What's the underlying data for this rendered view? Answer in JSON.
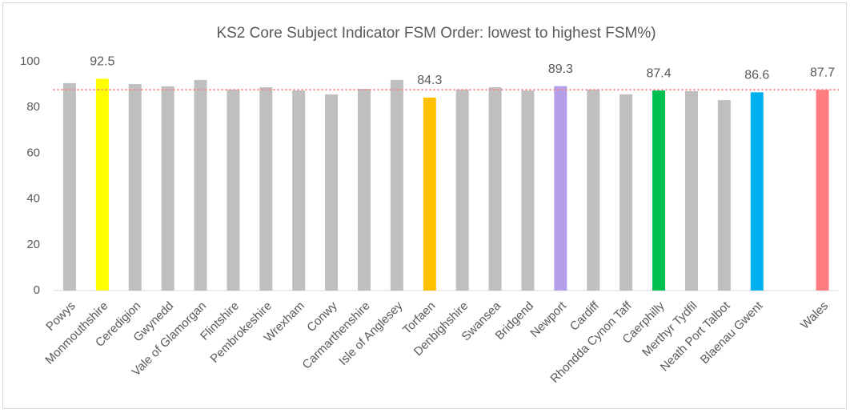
{
  "chart_data": {
    "type": "bar",
    "title": "KS2 Core Subject Indicator FSM Order: lowest to highest FSM%)",
    "categories": [
      "Powys",
      "Monmouthshire",
      "Ceredigion",
      "Gwynedd",
      "Vale of Glamorgan",
      "Flintshire",
      "Pembrokeshire",
      "Wrexham",
      "Conwy",
      "Carmarthenshire",
      "Isle of Anglesey",
      "Torfaen",
      "Denbighshire",
      "Swansea",
      "Bridgend",
      "Newport",
      "Cardiff",
      "Rhondda Cynon Taff",
      "Caerphilly",
      "Merthyr Tydfil",
      "Neath Port Talbot",
      "Blaenau Gwent",
      null,
      "Wales"
    ],
    "values": [
      90.6,
      92.5,
      90.2,
      89.2,
      92.0,
      87.8,
      88.8,
      87.4,
      85.7,
      88.1,
      92.0,
      84.3,
      87.8,
      88.8,
      87.4,
      89.3,
      87.8,
      85.7,
      87.4,
      87.1,
      83.2,
      86.6,
      null,
      87.7
    ],
    "value_labels": [
      null,
      "92.5",
      null,
      null,
      null,
      null,
      null,
      null,
      null,
      null,
      null,
      "84.3",
      null,
      null,
      null,
      "89.3",
      null,
      null,
      "87.4",
      null,
      null,
      "86.6",
      null,
      "87.7"
    ],
    "colors": [
      "#bfbfbf",
      "#ffff00",
      "#bfbfbf",
      "#bfbfbf",
      "#bfbfbf",
      "#bfbfbf",
      "#bfbfbf",
      "#bfbfbf",
      "#bfbfbf",
      "#bfbfbf",
      "#bfbfbf",
      "#ffc000",
      "#bfbfbf",
      "#bfbfbf",
      "#bfbfbf",
      "#b4a0e8",
      "#bfbfbf",
      "#bfbfbf",
      "#00c050",
      "#bfbfbf",
      "#bfbfbf",
      "#00b0f0",
      null,
      "#ff7c80"
    ],
    "reference_line": {
      "value": 87.7,
      "color": "#ff8080"
    },
    "ylim": [
      0,
      100
    ],
    "yticks": [
      0,
      20,
      40,
      60,
      80,
      100
    ],
    "grid": false
  }
}
